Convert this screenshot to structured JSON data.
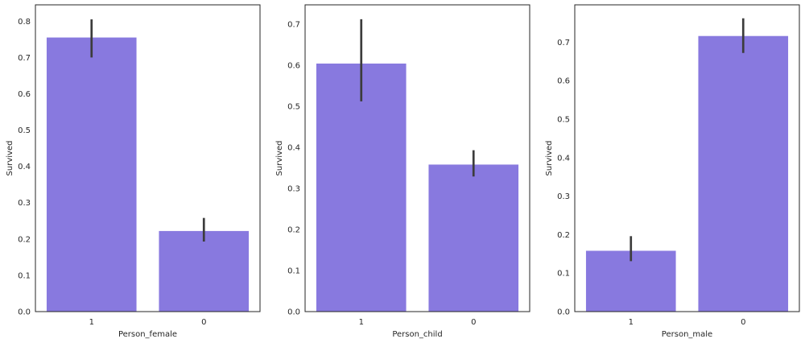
{
  "colors": {
    "bar": "#8879df",
    "errorbar": "#3c3c3c",
    "axes": "#262626",
    "background": "#ffffff"
  },
  "chart_data": [
    {
      "type": "bar",
      "categories": [
        "1",
        "0"
      ],
      "values": [
        0.755,
        0.222
      ],
      "ci_low": [
        0.7,
        0.193
      ],
      "ci_high": [
        0.805,
        0.258
      ],
      "xlabel": "Person_female",
      "ylabel": "Survived",
      "ylim": [
        0,
        0.845
      ],
      "yticks": [
        0.0,
        0.1,
        0.2,
        0.3,
        0.4,
        0.5,
        0.6,
        0.7,
        0.8
      ],
      "yticklabels": [
        "0.0",
        "0.1",
        "0.2",
        "0.3",
        "0.4",
        "0.5",
        "0.6",
        "0.7",
        "0.8"
      ],
      "grid": false
    },
    {
      "type": "bar",
      "categories": [
        "1",
        "0"
      ],
      "values": [
        0.604,
        0.358
      ],
      "ci_low": [
        0.512,
        0.329
      ],
      "ci_high": [
        0.712,
        0.393
      ],
      "xlabel": "Person_child",
      "ylabel": "Survived",
      "ylim": [
        0,
        0.747
      ],
      "yticks": [
        0.0,
        0.1,
        0.2,
        0.3,
        0.4,
        0.5,
        0.6,
        0.7
      ],
      "yticklabels": [
        "0.0",
        "0.1",
        "0.2",
        "0.3",
        "0.4",
        "0.5",
        "0.6",
        "0.7"
      ],
      "grid": false
    },
    {
      "type": "bar",
      "categories": [
        "1",
        "0"
      ],
      "values": [
        0.158,
        0.716
      ],
      "ci_low": [
        0.131,
        0.672
      ],
      "ci_high": [
        0.196,
        0.762
      ],
      "xlabel": "Person_male",
      "ylabel": "Survived",
      "ylim": [
        0,
        0.797
      ],
      "yticks": [
        0.0,
        0.1,
        0.2,
        0.3,
        0.4,
        0.5,
        0.6,
        0.7
      ],
      "yticklabels": [
        "0.0",
        "0.1",
        "0.2",
        "0.3",
        "0.4",
        "0.5",
        "0.6",
        "0.7"
      ],
      "grid": false
    }
  ]
}
